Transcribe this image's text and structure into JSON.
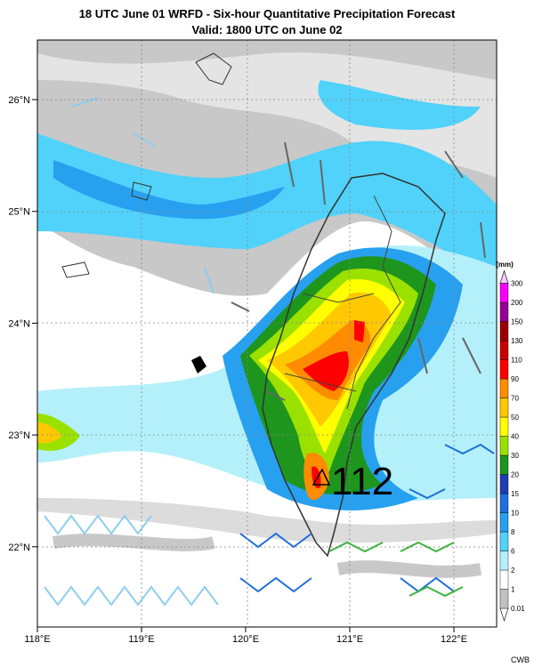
{
  "header": {
    "title": "18 UTC June 01 WRFD - Six-hour Quantitative Precipitation Forecast",
    "subtitle": "Valid: 1800 UTC on June 02"
  },
  "map": {
    "lat_labels": [
      "26°N",
      "25°N",
      "24°N",
      "23°N",
      "22°N"
    ],
    "lon_labels": [
      "118°E",
      "119°E",
      "120°E",
      "121°E",
      "122°E"
    ],
    "annotation": "112"
  },
  "colorbar": {
    "unit": "(mm)",
    "levels": [
      0.01,
      1,
      2,
      6,
      8,
      10,
      15,
      20,
      30,
      40,
      50,
      70,
      90,
      110,
      130,
      150,
      200,
      300
    ],
    "colors": [
      "#ffffff",
      "#c1c1c1",
      "#ffffff",
      "#b4f0fa",
      "#50d2fa",
      "#28a0f0",
      "#1e6edc",
      "#1e3cb4",
      "#1e961e",
      "#9be100",
      "#ffff00",
      "#ffc800",
      "#ff8c00",
      "#ff0000",
      "#c80000",
      "#9b0000",
      "#960096",
      "#fa00fa",
      "#ffc8ff"
    ]
  },
  "footer": {
    "credit": "CWB"
  }
}
